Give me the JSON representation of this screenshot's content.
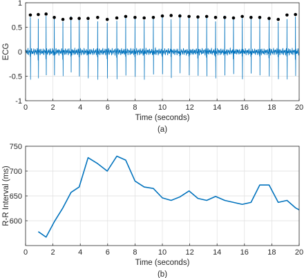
{
  "chart_data": [
    {
      "type": "line",
      "caption": "(a)",
      "xlabel": "Time (seconds)",
      "ylabel": "ECG",
      "xlim": [
        0,
        20
      ],
      "ylim": [
        -1,
        1
      ],
      "xticks": [
        "0",
        "2",
        "4",
        "6",
        "8",
        "10",
        "12",
        "14",
        "16",
        "18",
        "20"
      ],
      "yticks": [
        "-1",
        "-0.5",
        "0",
        "0.5",
        "1"
      ],
      "grid": true,
      "series": [
        {
          "kind": "ecg-beats",
          "color": "#0072BD",
          "beat_times": [
            0.35,
            0.93,
            1.5,
            2.1,
            2.73,
            3.32,
            3.92,
            4.57,
            5.27,
            5.97,
            6.67,
            7.32,
            8.0,
            8.67,
            9.34,
            10.0,
            10.64,
            11.28,
            11.95,
            12.6,
            13.24,
            13.89,
            14.56,
            15.2,
            15.84,
            16.48,
            17.12,
            17.8,
            18.47,
            19.11,
            19.73
          ],
          "r_peak_values": [
            0.75,
            0.76,
            0.77,
            0.7,
            0.66,
            0.68,
            0.68,
            0.68,
            0.7,
            0.66,
            0.69,
            0.72,
            0.7,
            0.69,
            0.7,
            0.73,
            0.74,
            0.73,
            0.72,
            0.71,
            0.72,
            0.7,
            0.7,
            0.69,
            0.72,
            0.7,
            0.7,
            0.68,
            0.66,
            0.75,
            0.76
          ]
        },
        {
          "kind": "r-peak-markers",
          "color": "#000000",
          "x": [
            0.35,
            0.93,
            1.5,
            2.1,
            2.73,
            3.32,
            3.92,
            4.57,
            5.27,
            5.97,
            6.67,
            7.32,
            8.0,
            8.67,
            9.34,
            10.0,
            10.64,
            11.28,
            11.95,
            12.6,
            13.24,
            13.89,
            14.56,
            15.2,
            15.84,
            16.48,
            17.12,
            17.8,
            18.47,
            19.11,
            19.73
          ],
          "y": [
            0.75,
            0.76,
            0.77,
            0.7,
            0.66,
            0.68,
            0.68,
            0.68,
            0.7,
            0.66,
            0.69,
            0.72,
            0.7,
            0.69,
            0.7,
            0.73,
            0.74,
            0.73,
            0.72,
            0.71,
            0.72,
            0.7,
            0.7,
            0.69,
            0.72,
            0.7,
            0.7,
            0.68,
            0.66,
            0.75,
            0.76
          ]
        }
      ]
    },
    {
      "type": "line",
      "caption": "(b)",
      "xlabel": "Time (seconds)",
      "ylabel": "R-R Interval (ms)",
      "xlim": [
        0,
        20
      ],
      "ylim": [
        550,
        750
      ],
      "xticks": [
        "0",
        "2",
        "4",
        "6",
        "8",
        "10",
        "12",
        "14",
        "16",
        "18",
        "20"
      ],
      "yticks": [
        "600",
        "650",
        "700",
        "750"
      ],
      "grid": true,
      "series": [
        {
          "color": "#0072BD",
          "x": [
            0.93,
            1.5,
            2.1,
            2.73,
            3.32,
            3.92,
            4.57,
            5.27,
            5.97,
            6.67,
            7.32,
            8.0,
            8.67,
            9.34,
            10.0,
            10.64,
            11.28,
            11.95,
            12.6,
            13.24,
            13.89,
            14.56,
            15.2,
            15.84,
            16.48,
            17.12,
            17.8,
            18.47,
            19.11,
            19.73,
            20.0
          ],
          "y": [
            578,
            567,
            598,
            626,
            657,
            668,
            727,
            715,
            700,
            730,
            722,
            680,
            668,
            665,
            646,
            641,
            648,
            660,
            645,
            641,
            649,
            641,
            637,
            633,
            637,
            672,
            672,
            637,
            641,
            626,
            622
          ]
        }
      ]
    }
  ]
}
